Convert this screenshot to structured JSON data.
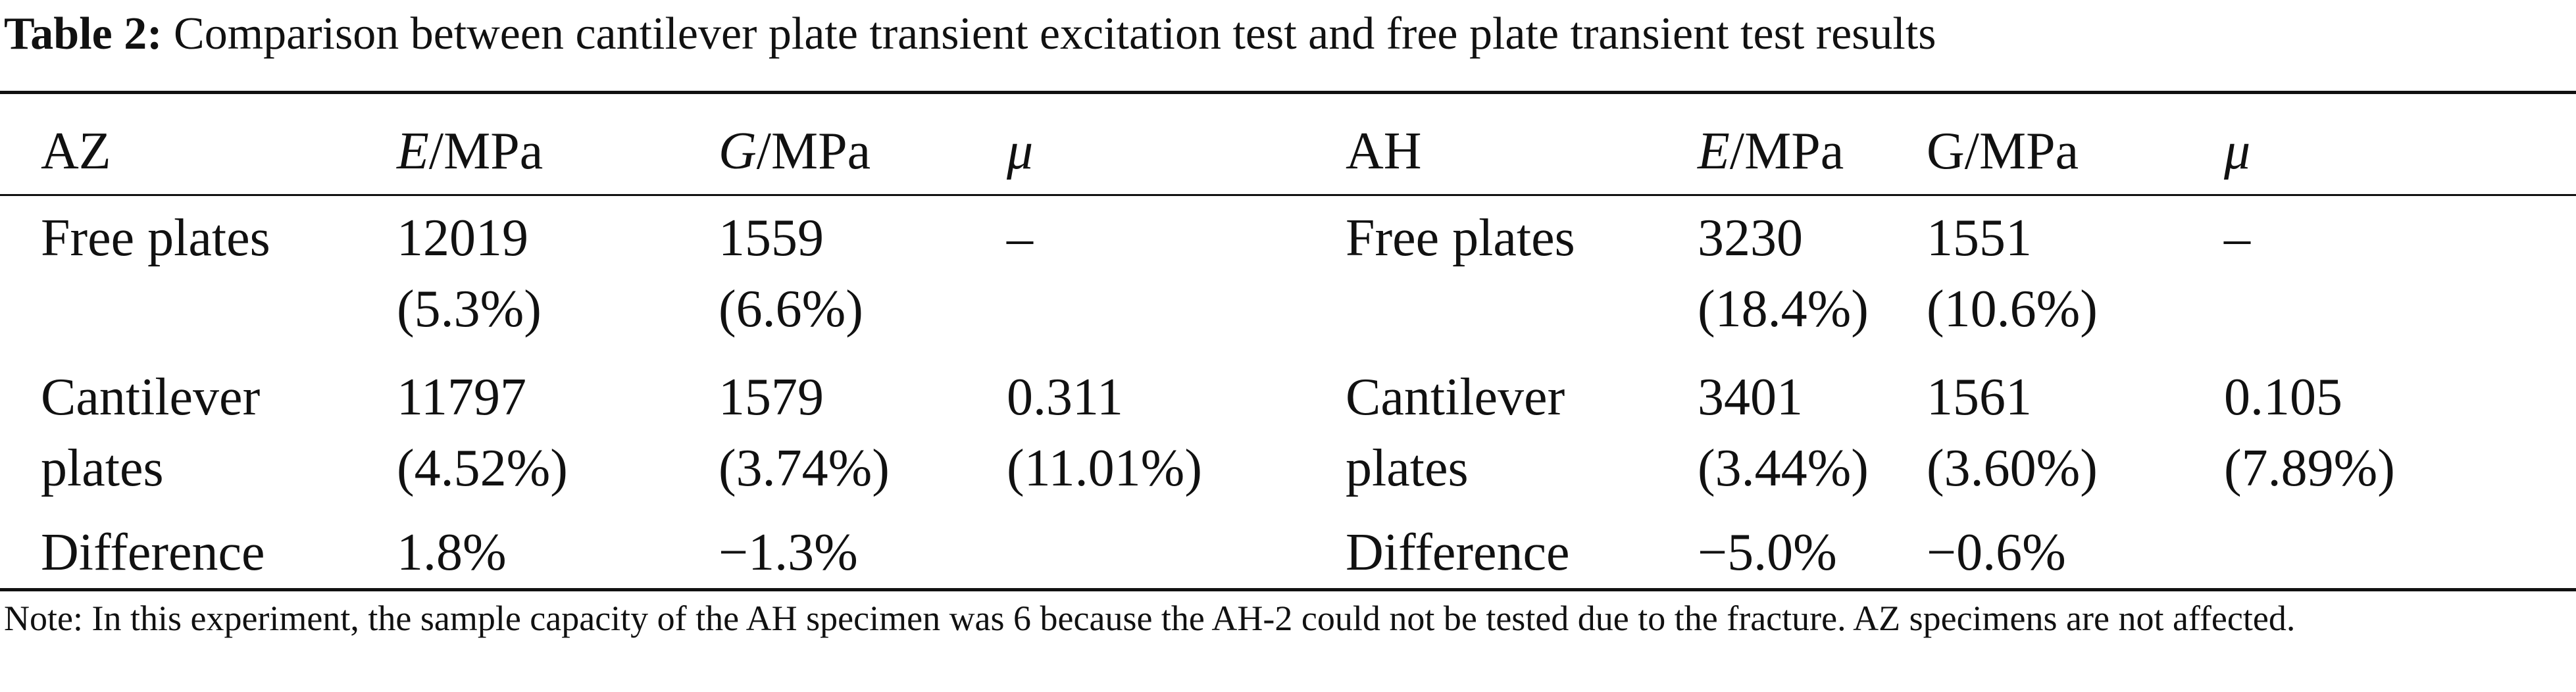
{
  "table": {
    "title_label": "Table 2:",
    "title_text": "Comparison between cantilever plate transient excitation test and free plate transient test results",
    "headers": {
      "az": "AZ",
      "e_var": "E",
      "e_unit": "/MPa",
      "g_var": "G",
      "g_unit": "/MPa",
      "mu": "μ",
      "ah": "AH",
      "e2_var": "E",
      "e2_unit": "/MPa",
      "g2": "G/MPa",
      "mu2": "μ"
    },
    "rows": {
      "free": {
        "label": "Free plates",
        "az_e": "12019",
        "az_e_pct": "(5.3%)",
        "az_g": "1559",
        "az_g_pct": "(6.6%)",
        "az_mu": "–",
        "label2": "Free plates",
        "ah_e": "3230",
        "ah_e_pct": "(18.4%)",
        "ah_g": "1551",
        "ah_g_pct": "(10.6%)",
        "ah_mu": "–"
      },
      "cantilever": {
        "label_line1": "Cantilever",
        "label_line2": "plates",
        "az_e": "11797",
        "az_e_pct": "(4.52%)",
        "az_g": "1579",
        "az_g_pct": "(3.74%)",
        "az_mu": "0.311",
        "az_mu_pct": "(11.01%)",
        "label2_line1": "Cantilever",
        "label2_line2": "plates",
        "ah_e": "3401",
        "ah_e_pct": "(3.44%)",
        "ah_g": "1561",
        "ah_g_pct": "(3.60%)",
        "ah_mu": "0.105",
        "ah_mu_pct": "(7.89%)"
      },
      "difference": {
        "label": "Difference",
        "az_e": "1.8%",
        "az_g": "−1.3%",
        "label2": "Difference",
        "ah_e": "−5.0%",
        "ah_g": "−0.6%"
      }
    },
    "note": "Note: In this experiment, the sample capacity of the AH specimen was 6 because the AH-2 could not be tested due to the fracture. AZ specimens are not affected."
  }
}
